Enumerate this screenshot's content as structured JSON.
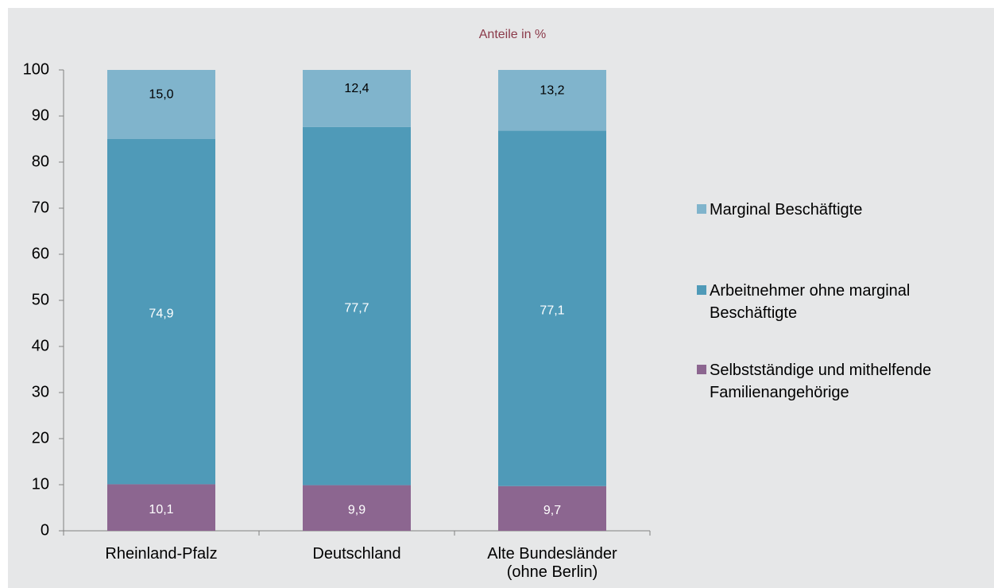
{
  "chart_data": {
    "type": "stacked_bar",
    "subtitle": "Anteile in %",
    "categories": [
      "Rheinland-Pfalz",
      "Deutschland",
      "Alte Bundesländer (ohne Berlin)"
    ],
    "series": [
      {
        "name": "Selbstständige und mithelfende Familienangehörige",
        "color": "#8c6690",
        "values": [
          10.1,
          9.9,
          9.7
        ],
        "value_labels": [
          "10,1",
          "9,9",
          "9,7"
        ]
      },
      {
        "name": "Arbeitnehmer ohne marginal Beschäftigte",
        "color": "#4f9ab8",
        "values": [
          74.9,
          77.7,
          77.1
        ],
        "value_labels": [
          "74,9",
          "77,7",
          "77,1"
        ]
      },
      {
        "name": "Marginal Beschäftigte",
        "color": "#80b4cc",
        "values": [
          15.0,
          12.4,
          13.2
        ],
        "value_labels": [
          "15,0",
          "12,4",
          "13,2"
        ]
      }
    ],
    "ylim": [
      0,
      100
    ],
    "yticks": [
      0,
      10,
      20,
      30,
      40,
      50,
      60,
      70,
      80,
      90,
      100
    ],
    "legend": "right"
  }
}
